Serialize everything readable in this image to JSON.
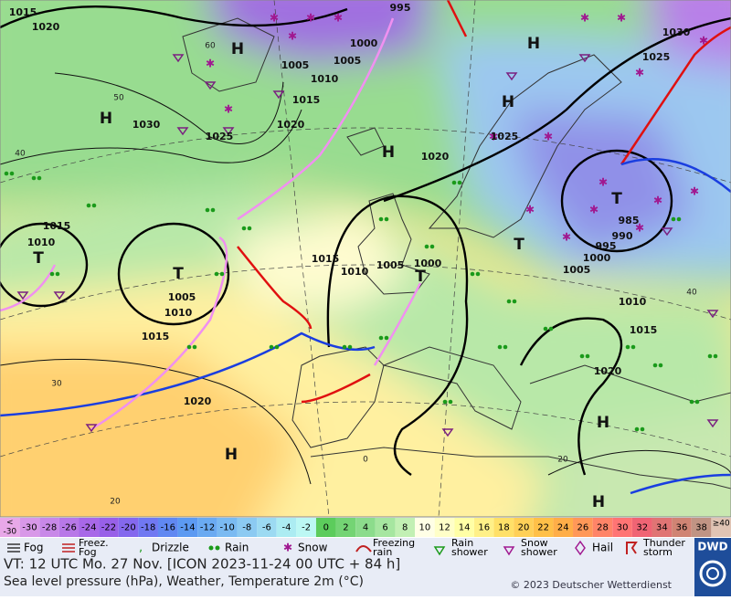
{
  "map": {
    "isobar_labels": [
      1015,
      1020,
      1030,
      1025,
      1005,
      1010,
      1015,
      1020,
      1005,
      1000,
      995,
      1020,
      1025,
      1030,
      1025,
      985,
      990,
      995,
      1000,
      1005,
      1015,
      1010,
      1015,
      1010,
      1005,
      1000,
      1005,
      1010,
      1015,
      1020,
      1010,
      1015,
      1020
    ],
    "highs": [
      "H",
      "H",
      "H",
      "H",
      "H",
      "H",
      "H",
      "H"
    ],
    "lows": [
      "T",
      "T",
      "T",
      "T",
      "T"
    ],
    "temperature_labels": [
      60,
      50,
      40,
      30,
      20,
      0,
      20,
      40
    ]
  },
  "color_scale": {
    "low_label": [
      "<",
      "-30"
    ],
    "high_label": [
      "≥40"
    ],
    "values": [
      -30,
      -28,
      -26,
      -24,
      -22,
      -20,
      -18,
      -16,
      -14,
      -12,
      -10,
      -8,
      -6,
      -4,
      -2,
      0,
      2,
      4,
      6,
      8,
      10,
      12,
      14,
      16,
      18,
      20,
      22,
      24,
      26,
      28,
      30,
      32,
      34,
      36,
      38
    ],
    "colors": [
      "#e8a8e8",
      "#d898e8",
      "#c888e8",
      "#b878e8",
      "#a868e8",
      "#9860e8",
      "#8468ee",
      "#7078f2",
      "#6088f2",
      "#5c9af2",
      "#6aaaf2",
      "#7abaf2",
      "#8ccaf2",
      "#9cdaf2",
      "#acecf2",
      "#bcf8f4",
      "#5ccc5c",
      "#74d474",
      "#8cdc8c",
      "#a6e6a0",
      "#c2f0b4",
      "#ffffe6",
      "#ffffc8",
      "#ffffa6",
      "#fff088",
      "#ffe068",
      "#ffd058",
      "#ffc048",
      "#ffae48",
      "#ff9858",
      "#ff8468",
      "#ff7474",
      "#f06474",
      "#e07474",
      "#d08474",
      "#c09484",
      "#e0c4b4"
    ]
  },
  "legend": [
    "Fog",
    "Freez. Fog",
    "Drizzle",
    "Rain",
    "Snow",
    "Freezing rain",
    "Rain shower",
    "Snow shower",
    "Hail",
    "Thunder storm"
  ],
  "footer": {
    "valid_time": "VT: 12 UTC Mo.  27 Nov. [ICON 2023-11-24  00 UTC + 84 h]",
    "description": "Sea level pressure (hPa), Weather, Temperature 2m (°C)",
    "copyright": "© 2023 Deutscher Wetterdienst",
    "logo": "DWD"
  }
}
